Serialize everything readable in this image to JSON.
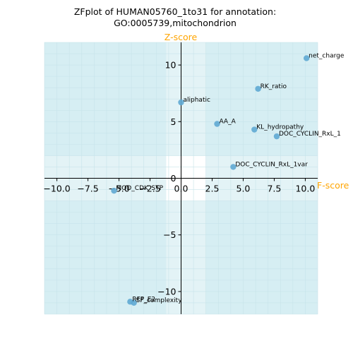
{
  "chart_data": {
    "type": "scatter",
    "title_line1": "ZFplot of HUMAN05760_1to31 for annotation:",
    "title_line2": "GO:0005739,mitochondrion",
    "xlabel": "F-score",
    "ylabel": "Z-score",
    "axis_label_color": "#ffa500",
    "point_color": "#5fa8d3",
    "xlim": [
      -11,
      11
    ],
    "ylim": [
      -12,
      12
    ],
    "xticks": [
      -10,
      -7.5,
      -5,
      -2.5,
      0,
      2.5,
      5,
      7.5,
      10
    ],
    "xtick_labels": [
      "−10.0",
      "−7.5",
      "−5.0",
      "−2.5",
      "0.0",
      "2.5",
      "5.0",
      "7.5",
      "10.0"
    ],
    "yticks": [
      -10,
      -5,
      0,
      5,
      10
    ],
    "ytick_labels": [
      "−10",
      "−5",
      "0",
      "5",
      "10"
    ],
    "points": [
      {
        "label": "net_charge",
        "x": 10.1,
        "y": 10.6
      },
      {
        "label": "RK_ratio",
        "x": 6.2,
        "y": 7.9
      },
      {
        "label": "aliphatic",
        "x": 0.0,
        "y": 6.7
      },
      {
        "label": "AA_A",
        "x": 2.9,
        "y": 4.8
      },
      {
        "label": "KL_hydropathy",
        "x": 5.9,
        "y": 4.3
      },
      {
        "label": "DOC_CYCLIN_RxL_1",
        "x": 7.7,
        "y": 3.7
      },
      {
        "label": "DOC_CYCLIN_RxL_1var",
        "x": 4.2,
        "y": 1.0
      },
      {
        "label": "MOD_CDK_STP",
        "x": -5.4,
        "y": -1.1
      },
      {
        "label": "RFP_E2",
        "x": -4.1,
        "y": -10.9
      },
      {
        "label": "SF_complexity",
        "x": -3.8,
        "y": -11.0
      }
    ]
  }
}
